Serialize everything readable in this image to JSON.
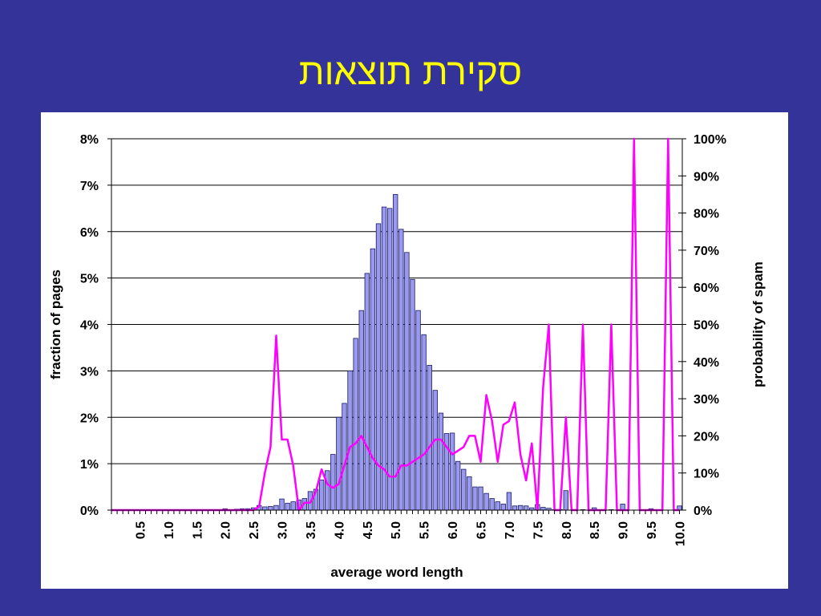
{
  "slide": {
    "title": "סקירת תוצאות"
  },
  "colors": {
    "background": "#333399",
    "title": "#ffff00",
    "bars": "#9999ee",
    "bar_edge": "#1a1a66",
    "line": "#ff00ff"
  },
  "chart_data": {
    "type": "bar",
    "title": "",
    "xlabel": "average word length",
    "ylabel": "fraction of pages",
    "y2label": "probability of spam",
    "xlim": [
      0,
      10.05
    ],
    "ylim": [
      0,
      0.08
    ],
    "y2lim": [
      0,
      1
    ],
    "grid": true,
    "xticks": [
      "0.5",
      "1.0",
      "1.5",
      "2.0",
      "2.5",
      "3.0",
      "3.5",
      "4.0",
      "4.5",
      "5.0",
      "5.5",
      "6.0",
      "6.5",
      "7.0",
      "7.5",
      "8.0",
      "8.5",
      "9.0",
      "9.5",
      "10.0"
    ],
    "yticks": [
      "0%",
      "1%",
      "2%",
      "3%",
      "4%",
      "5%",
      "6%",
      "7%",
      "8%"
    ],
    "y2ticks": [
      "0%",
      "10%",
      "20%",
      "30%",
      "40%",
      "50%",
      "60%",
      "70%",
      "80%",
      "90%",
      "100%"
    ],
    "series": [
      {
        "type": "bar",
        "axis": "left",
        "x": [
          2.0,
          2.1,
          2.2,
          2.3,
          2.4,
          2.5,
          2.6,
          2.7,
          2.8,
          2.9,
          3.0,
          3.1,
          3.2,
          3.3,
          3.4,
          3.5,
          3.6,
          3.7,
          3.8,
          3.9,
          4.0,
          4.1,
          4.2,
          4.3,
          4.4,
          4.5,
          4.6,
          4.7,
          4.8,
          4.9,
          5.0,
          5.1,
          5.2,
          5.3,
          5.4,
          5.5,
          5.6,
          5.7,
          5.8,
          5.9,
          6.0,
          6.1,
          6.2,
          6.3,
          6.4,
          6.5,
          6.6,
          6.7,
          6.8,
          6.9,
          7.0,
          7.1,
          7.2,
          7.3,
          7.4,
          7.5,
          7.6,
          7.7,
          7.8,
          7.9,
          8.0,
          8.3,
          8.5,
          8.8,
          9.0,
          9.5,
          10.0
        ],
        "values": [
          0.0003,
          0.0001,
          0.0002,
          0.0003,
          0.0003,
          0.0005,
          0.001,
          0.0007,
          0.0008,
          0.001,
          0.0024,
          0.0015,
          0.0018,
          0.0022,
          0.0025,
          0.004,
          0.0045,
          0.0065,
          0.0085,
          0.012,
          0.02,
          0.023,
          0.03,
          0.037,
          0.043,
          0.051,
          0.0563,
          0.0617,
          0.0653,
          0.065,
          0.068,
          0.0605,
          0.0555,
          0.0497,
          0.043,
          0.0378,
          0.0312,
          0.0258,
          0.0209,
          0.0165,
          0.0166,
          0.0105,
          0.0088,
          0.0072,
          0.005,
          0.005,
          0.0036,
          0.0025,
          0.0018,
          0.0013,
          0.0038,
          0.0009,
          0.001,
          0.0009,
          0.0005,
          0.0012,
          0.0006,
          0.0004,
          0.0001,
          0.0001,
          0.0042,
          0.0001,
          0.0005,
          0.0001,
          0.0013,
          0.0003,
          0.0009
        ]
      },
      {
        "type": "line",
        "axis": "right",
        "x": [
          0.0,
          2.0,
          2.5,
          2.6,
          2.7,
          2.8,
          2.9,
          3.0,
          3.1,
          3.2,
          3.3,
          3.4,
          3.5,
          3.6,
          3.7,
          3.8,
          3.9,
          4.0,
          4.1,
          4.2,
          4.3,
          4.4,
          4.5,
          4.6,
          4.7,
          4.8,
          4.9,
          5.0,
          5.1,
          5.2,
          5.3,
          5.4,
          5.5,
          5.6,
          5.7,
          5.8,
          5.9,
          6.0,
          6.1,
          6.2,
          6.3,
          6.4,
          6.5,
          6.6,
          6.7,
          6.8,
          6.9,
          7.0,
          7.1,
          7.2,
          7.3,
          7.4,
          7.5,
          7.6,
          7.7,
          7.8,
          7.9,
          8.0,
          8.1,
          8.2,
          8.3,
          8.4,
          8.7,
          8.8,
          8.9,
          9.1,
          9.2,
          9.3,
          9.4,
          9.7,
          9.8,
          9.9,
          10.0
        ],
        "values": [
          0,
          0,
          0,
          0.01,
          0.1,
          0.17,
          0.47,
          0.19,
          0.19,
          0.12,
          0.0,
          0.02,
          0.02,
          0.05,
          0.11,
          0.07,
          0.06,
          0.07,
          0.12,
          0.17,
          0.18,
          0.2,
          0.17,
          0.14,
          0.12,
          0.11,
          0.09,
          0.09,
          0.12,
          0.12,
          0.13,
          0.14,
          0.15,
          0.17,
          0.19,
          0.19,
          0.17,
          0.15,
          0.16,
          0.17,
          0.2,
          0.2,
          0.13,
          0.31,
          0.24,
          0.13,
          0.23,
          0.24,
          0.29,
          0.15,
          0.08,
          0.18,
          0.0,
          0.33,
          0.5,
          0.0,
          0.0,
          0.25,
          0.0,
          0.0,
          0.5,
          0.0,
          0.0,
          0.5,
          0.0,
          0.0,
          1.0,
          0.0,
          0.0,
          0.0,
          1.0,
          0.0,
          0.0
        ]
      }
    ]
  }
}
